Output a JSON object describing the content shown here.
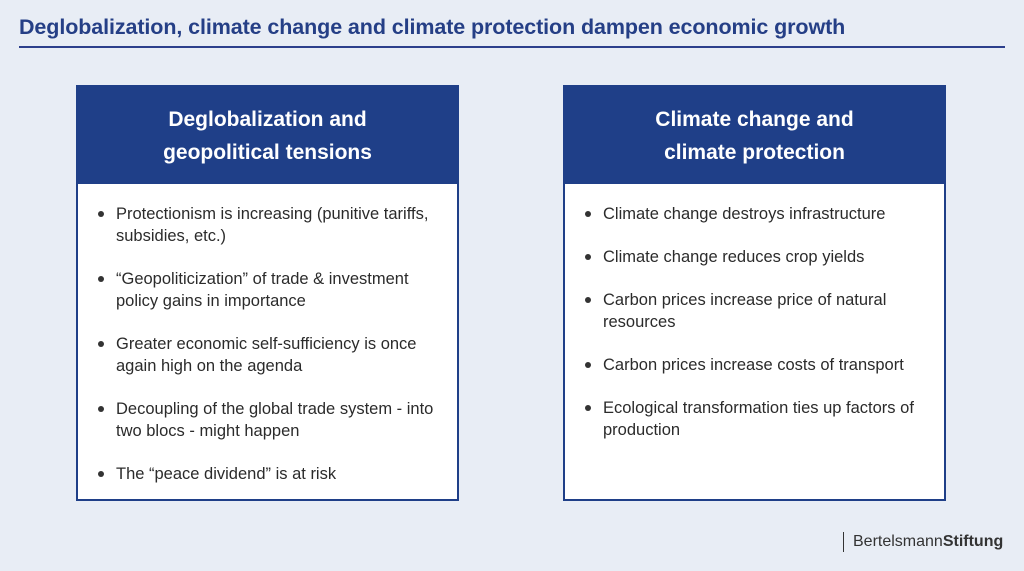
{
  "title": "Deglobalization, climate change and climate protection dampen economic growth",
  "colors": {
    "accent": "#1f3f88",
    "background": "#e8edf5",
    "title": "#253f86"
  },
  "cards": [
    {
      "header": [
        "Deglobalization and",
        "geopolitical tensions"
      ],
      "items": [
        "Protectionism is increasing (punitive tariffs, subsidies, etc.)",
        "“Geopoliticization” of trade & investment policy gains in importance",
        "Greater economic self-sufficiency is once again high on the agenda",
        "Decoupling of the global trade system - into two blocs - might happen",
        "The “peace dividend” is at risk"
      ]
    },
    {
      "header": [
        "Climate change and",
        "climate protection"
      ],
      "items": [
        "Climate change destroys infrastructure",
        "Climate change reduces crop yields",
        "Carbon prices increase price of natural resources",
        "Carbon prices increase costs of transport",
        "Ecological transformation ties up factors of production"
      ]
    }
  ],
  "logo": {
    "part1": "Bertelsmann",
    "part2": "Stiftung"
  }
}
